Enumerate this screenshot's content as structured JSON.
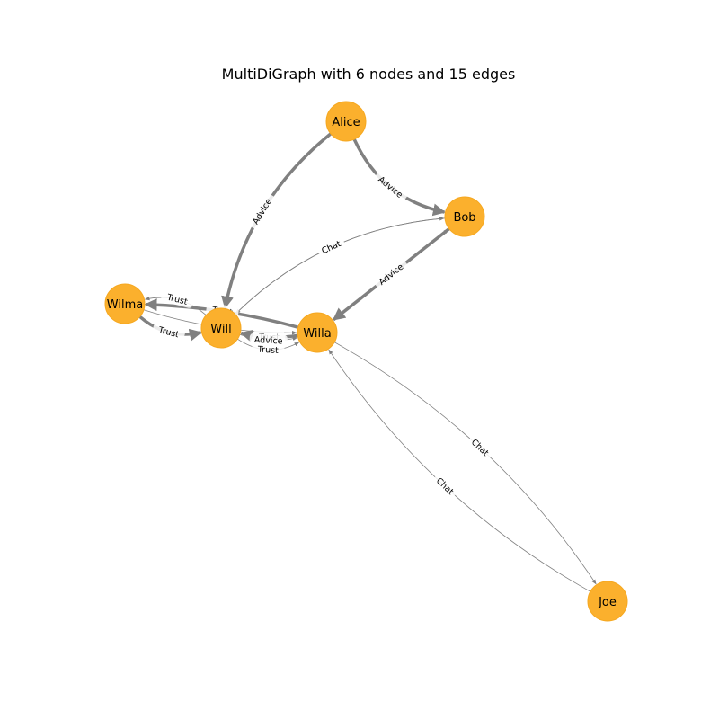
{
  "title": "MultiDiGraph with 6 nodes and 15 edges",
  "colors": {
    "node": "#fbb02d",
    "node_stroke": "#f6a820",
    "edge": "#808080",
    "background": "#ffffff"
  },
  "nodes": [
    {
      "id": "alice",
      "label": "Alice"
    },
    {
      "id": "bob",
      "label": "Bob"
    },
    {
      "id": "wilma",
      "label": "Wilma"
    },
    {
      "id": "will",
      "label": "Will"
    },
    {
      "id": "willa",
      "label": "Willa"
    },
    {
      "id": "joe",
      "label": "Joe"
    }
  ],
  "edges": [
    {
      "source": "alice",
      "target": "bob",
      "relation": "Advice",
      "heavy": true
    },
    {
      "source": "alice",
      "target": "will",
      "relation": "Advice",
      "heavy": true
    },
    {
      "source": "bob",
      "target": "willa",
      "relation": "Advice",
      "heavy": true
    },
    {
      "source": "bob",
      "target": "will",
      "relation": "Chat",
      "heavy": false
    },
    {
      "source": "will",
      "target": "bob",
      "relation": "Chat",
      "heavy": false
    },
    {
      "source": "willa",
      "target": "joe",
      "relation": "Chat",
      "heavy": false
    },
    {
      "source": "joe",
      "target": "willa",
      "relation": "Chat",
      "heavy": false
    },
    {
      "source": "wilma",
      "target": "will",
      "relation": "Trust",
      "heavy": true
    },
    {
      "source": "will",
      "target": "wilma",
      "relation": "Trust",
      "heavy": false
    },
    {
      "source": "willa",
      "target": "wilma",
      "relation": "Trust",
      "heavy": true
    },
    {
      "source": "will",
      "target": "willa",
      "relation": "Trust",
      "heavy": false
    },
    {
      "source": "willa",
      "target": "will",
      "relation": "Trust",
      "heavy": true
    },
    {
      "source": "will",
      "target": "willa",
      "relation": "Advice",
      "heavy": false
    },
    {
      "source": "wilma",
      "target": "willa",
      "relation": "Trust",
      "heavy": false
    },
    {
      "source": "willa",
      "target": "bob",
      "relation": "Chat",
      "heavy": false
    }
  ]
}
